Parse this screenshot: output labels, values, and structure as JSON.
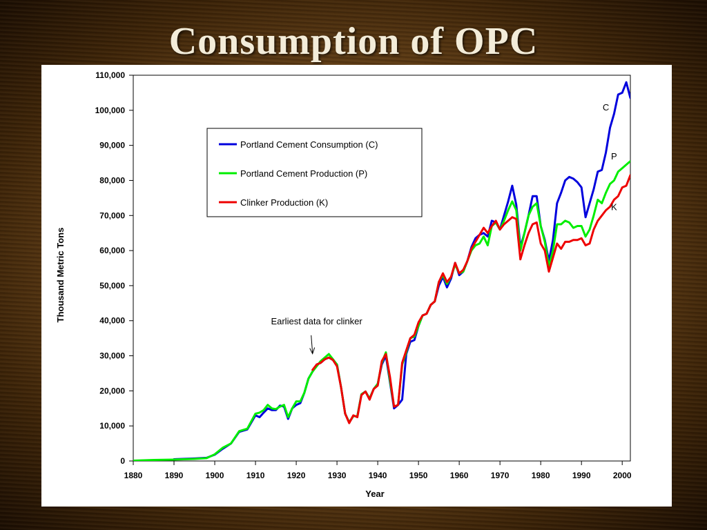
{
  "slide": {
    "title": "Consumption of OPC"
  },
  "chart_data": {
    "type": "line",
    "title": "",
    "xlabel": "Year",
    "ylabel": "Thousand Metric Tons",
    "xlim": [
      1880,
      2002
    ],
    "ylim": [
      0,
      110000
    ],
    "x_ticks": [
      1880,
      1890,
      1900,
      1910,
      1920,
      1930,
      1940,
      1950,
      1960,
      1970,
      1980,
      1990,
      2000
    ],
    "y_ticks": [
      0,
      10000,
      20000,
      30000,
      40000,
      50000,
      60000,
      70000,
      80000,
      90000,
      100000,
      110000
    ],
    "y_tick_labels": [
      "0",
      "10,000",
      "20,000",
      "30,000",
      "40,000",
      "50,000",
      "60,000",
      "70,000",
      "80,000",
      "90,000",
      "100,000",
      "110,000"
    ],
    "grid": false,
    "legend": {
      "placement": "upper-left",
      "entries": [
        "Portland Cement Consumption (C)",
        "Portland Cement Production (P)",
        "Clinker Production (K)"
      ]
    },
    "annotations": [
      {
        "text": "Earliest data for clinker",
        "x": 1925,
        "y": 39000,
        "arrow_to": [
          1924,
          30000
        ]
      },
      {
        "text": "C",
        "x": 1996,
        "y": 100000
      },
      {
        "text": "P",
        "x": 1998,
        "y": 86000
      },
      {
        "text": "K",
        "x": 1998,
        "y": 71500
      }
    ],
    "series": [
      {
        "name": "Portland Cement Consumption (C)",
        "color": "#0000dd",
        "x": [
          1890,
          1895,
          1898,
          1900,
          1902,
          1904,
          1906,
          1908,
          1910,
          1911,
          1912,
          1913,
          1914,
          1915,
          1916,
          1917,
          1918,
          1919,
          1920,
          1921,
          1922,
          1923,
          1924,
          1925,
          1926,
          1927,
          1928,
          1929,
          1930,
          1931,
          1932,
          1933,
          1934,
          1935,
          1936,
          1937,
          1938,
          1939,
          1940,
          1941,
          1942,
          1943,
          1944,
          1945,
          1946,
          1947,
          1948,
          1949,
          1950,
          1951,
          1952,
          1953,
          1954,
          1955,
          1956,
          1957,
          1958,
          1959,
          1960,
          1961,
          1962,
          1963,
          1964,
          1965,
          1966,
          1967,
          1968,
          1969,
          1970,
          1971,
          1972,
          1973,
          1974,
          1975,
          1976,
          1977,
          1978,
          1979,
          1980,
          1981,
          1982,
          1983,
          1984,
          1985,
          1986,
          1987,
          1988,
          1989,
          1990,
          1991,
          1992,
          1993,
          1994,
          1995,
          1996,
          1997,
          1998,
          1999,
          2000,
          2001,
          2002
        ],
        "y": [
          500,
          700,
          900,
          1800,
          3500,
          5000,
          8300,
          9000,
          13000,
          12500,
          13800,
          15000,
          14500,
          14500,
          15800,
          15500,
          12000,
          15000,
          16000,
          16500,
          19500,
          23500,
          25500,
          27500,
          28000,
          29000,
          29500,
          28800,
          27500,
          21000,
          13500,
          11000,
          12800,
          12800,
          19000,
          19800,
          17800,
          20500,
          22000,
          27500,
          30000,
          22500,
          15000,
          16000,
          17500,
          30500,
          34000,
          34500,
          38500,
          41500,
          42000,
          44500,
          45500,
          50000,
          52500,
          49500,
          52000,
          56500,
          53000,
          54000,
          57000,
          61000,
          63500,
          64500,
          65000,
          64000,
          68500,
          68000,
          66000,
          70000,
          74000,
          78500,
          73000,
          61000,
          65000,
          70000,
          75500,
          75500,
          67000,
          63000,
          57000,
          63000,
          73500,
          76500,
          80000,
          81000,
          80500,
          79500,
          78000,
          69500,
          73500,
          77500,
          82500,
          83000,
          88000,
          95000,
          99000,
          104500,
          105000,
          108000,
          103500
        ]
      },
      {
        "name": "Portland Cement Production (P)",
        "color": "#00ee00",
        "x": [
          1880,
          1885,
          1890,
          1895,
          1898,
          1900,
          1902,
          1904,
          1906,
          1908,
          1910,
          1911,
          1912,
          1913,
          1914,
          1915,
          1916,
          1917,
          1918,
          1919,
          1920,
          1921,
          1922,
          1923,
          1924,
          1925,
          1926,
          1927,
          1928,
          1929,
          1930,
          1931,
          1932,
          1933,
          1934,
          1935,
          1936,
          1937,
          1938,
          1939,
          1940,
          1941,
          1942,
          1943,
          1944,
          1945,
          1946,
          1947,
          1948,
          1949,
          1950,
          1951,
          1952,
          1953,
          1954,
          1955,
          1956,
          1957,
          1958,
          1959,
          1960,
          1961,
          1962,
          1963,
          1964,
          1965,
          1966,
          1967,
          1968,
          1969,
          1970,
          1971,
          1972,
          1973,
          1974,
          1975,
          1976,
          1977,
          1978,
          1979,
          1980,
          1981,
          1982,
          1983,
          1984,
          1985,
          1986,
          1987,
          1988,
          1989,
          1990,
          1991,
          1992,
          1993,
          1994,
          1995,
          1996,
          1997,
          1998,
          1999,
          2000,
          2001,
          2002
        ],
        "y": [
          100,
          300,
          400,
          600,
          800,
          1900,
          3800,
          5000,
          8500,
          9200,
          13500,
          13800,
          14500,
          16000,
          15000,
          14800,
          15500,
          16000,
          12500,
          15000,
          17000,
          17000,
          19500,
          23500,
          25500,
          27000,
          28500,
          29500,
          30500,
          29000,
          27500,
          21000,
          13500,
          11000,
          12800,
          12800,
          19000,
          19800,
          17800,
          20500,
          22000,
          28000,
          31000,
          23000,
          15500,
          16000,
          27500,
          31000,
          35000,
          35500,
          38500,
          41500,
          42000,
          44500,
          45500,
          51000,
          53000,
          50500,
          52500,
          56000,
          53500,
          54000,
          57000,
          60000,
          61500,
          62000,
          64000,
          61500,
          67000,
          68000,
          66000,
          68500,
          71500,
          74000,
          71500,
          60000,
          65000,
          70000,
          72500,
          73500,
          67000,
          62500,
          55500,
          60000,
          67500,
          67500,
          68500,
          68000,
          66500,
          67000,
          67000,
          64000,
          66000,
          70000,
          74500,
          73500,
          76500,
          79000,
          80000,
          82500,
          83500,
          84500,
          85500
        ]
      },
      {
        "name": "Clinker Production (K)",
        "color": "#ee0000",
        "x": [
          1924,
          1925,
          1926,
          1927,
          1928,
          1929,
          1930,
          1931,
          1932,
          1933,
          1934,
          1935,
          1936,
          1937,
          1938,
          1939,
          1940,
          1941,
          1942,
          1943,
          1944,
          1945,
          1946,
          1947,
          1948,
          1949,
          1950,
          1951,
          1952,
          1953,
          1954,
          1955,
          1956,
          1957,
          1958,
          1959,
          1960,
          1961,
          1962,
          1963,
          1964,
          1965,
          1966,
          1967,
          1968,
          1969,
          1970,
          1971,
          1972,
          1973,
          1974,
          1975,
          1976,
          1977,
          1978,
          1979,
          1980,
          1981,
          1982,
          1983,
          1984,
          1985,
          1986,
          1987,
          1988,
          1989,
          1990,
          1991,
          1992,
          1993,
          1994,
          1995,
          1996,
          1997,
          1998,
          1999,
          2000,
          2001,
          2002
        ],
        "y": [
          26000,
          27500,
          28000,
          29000,
          29500,
          28800,
          27000,
          21000,
          13500,
          10800,
          13000,
          12500,
          18800,
          19800,
          17500,
          20500,
          21500,
          28500,
          30500,
          24000,
          15500,
          16000,
          28000,
          31500,
          35000,
          36000,
          39500,
          41500,
          42000,
          44500,
          45500,
          51000,
          53500,
          51000,
          52500,
          56500,
          53500,
          54500,
          57000,
          60500,
          62500,
          64500,
          66500,
          65000,
          67000,
          68500,
          66000,
          67500,
          68500,
          69500,
          69000,
          57500,
          61500,
          65000,
          67500,
          68000,
          62000,
          60000,
          54000,
          58000,
          62000,
          60500,
          62500,
          62500,
          63000,
          63000,
          63500,
          61500,
          62000,
          66000,
          68500,
          70000,
          71500,
          72500,
          74500,
          75500,
          78000,
          78500,
          81500
        ]
      }
    ]
  }
}
